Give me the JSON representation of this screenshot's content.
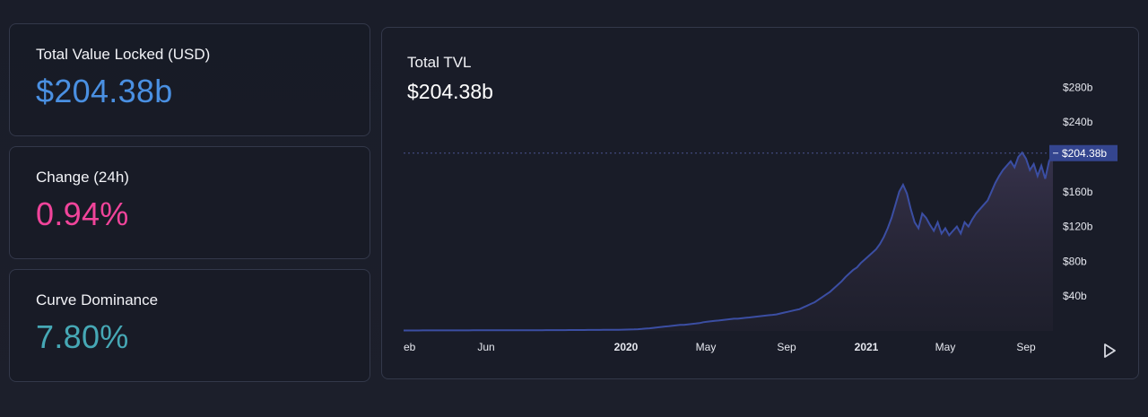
{
  "stats": {
    "tvl": {
      "label": "Total Value Locked (USD)",
      "value": "$204.38b",
      "color": "#4a90e2"
    },
    "change": {
      "label": "Change (24h)",
      "value": "0.94%",
      "color": "#f0449a"
    },
    "dominance": {
      "label": "Curve Dominance",
      "value": "7.80%",
      "color": "#46a8b5"
    }
  },
  "chart": {
    "title": "Total TVL",
    "value": "$204.38b",
    "current_label": "$204.38b",
    "line_color": "#3b4ea3",
    "play_icon": "play-icon"
  },
  "chart_data": {
    "type": "area",
    "title": "Total TVL",
    "xlabel": "",
    "ylabel": "",
    "y_ticks": [
      "$40b",
      "$80b",
      "$120b",
      "$160b",
      "$240b",
      "$280b"
    ],
    "y_tick_values": [
      40,
      80,
      120,
      160,
      240,
      280
    ],
    "x_ticks": [
      "eb",
      "Jun",
      "2020",
      "May",
      "Sep",
      "2021",
      "May",
      "Sep"
    ],
    "x_tick_bold": [
      false,
      false,
      true,
      false,
      false,
      true,
      false,
      false
    ],
    "ylim": [
      0,
      300
    ],
    "current_value": 204.38,
    "series": [
      {
        "values": [
          0.5,
          0.5,
          0.5,
          0.5,
          0.5,
          0.6,
          0.6,
          0.6,
          0.6,
          0.6,
          0.6,
          0.6,
          0.6,
          0.6,
          0.6,
          0.6,
          0.6,
          0.6,
          0.7,
          0.7,
          0.7,
          0.7,
          0.7,
          0.7,
          0.7,
          0.7,
          0.7,
          0.7,
          0.7,
          0.8,
          0.8,
          0.8,
          0.8,
          0.8,
          0.8,
          0.8,
          0.8,
          0.9,
          0.9,
          0.9,
          0.9,
          0.9,
          0.9,
          1.0,
          1.0,
          1.0,
          1.0,
          1.0,
          1.1,
          1.1,
          1.1,
          1.1,
          1.2,
          1.2,
          1.2,
          1.3,
          1.3,
          1.4,
          1.5,
          1.6,
          1.8,
          2.0,
          2.3,
          2.7,
          3.0,
          3.5,
          4,
          4.5,
          5,
          5.5,
          6,
          6.5,
          7,
          7,
          7.5,
          8,
          8.5,
          9,
          10,
          10.5,
          11,
          11.5,
          12,
          12.5,
          13,
          13.5,
          14,
          14,
          14.5,
          15,
          15.5,
          16,
          16.5,
          17,
          17.5,
          18,
          18.5,
          19,
          20,
          21,
          22,
          23,
          24,
          25,
          27,
          29,
          31,
          33,
          36,
          39,
          42,
          45,
          49,
          53,
          57,
          62,
          66,
          70,
          73,
          78,
          82,
          86,
          90,
          94,
          100,
          108,
          118,
          130,
          145,
          160,
          168,
          158,
          140,
          125,
          118,
          135,
          130,
          122,
          115,
          125,
          112,
          118,
          110,
          115,
          120,
          112,
          125,
          120,
          128,
          135,
          140,
          145,
          150,
          160,
          170,
          178,
          185,
          190,
          195,
          188,
          200,
          205,
          198,
          185,
          192,
          178,
          190,
          175,
          195,
          204.38
        ]
      }
    ]
  }
}
